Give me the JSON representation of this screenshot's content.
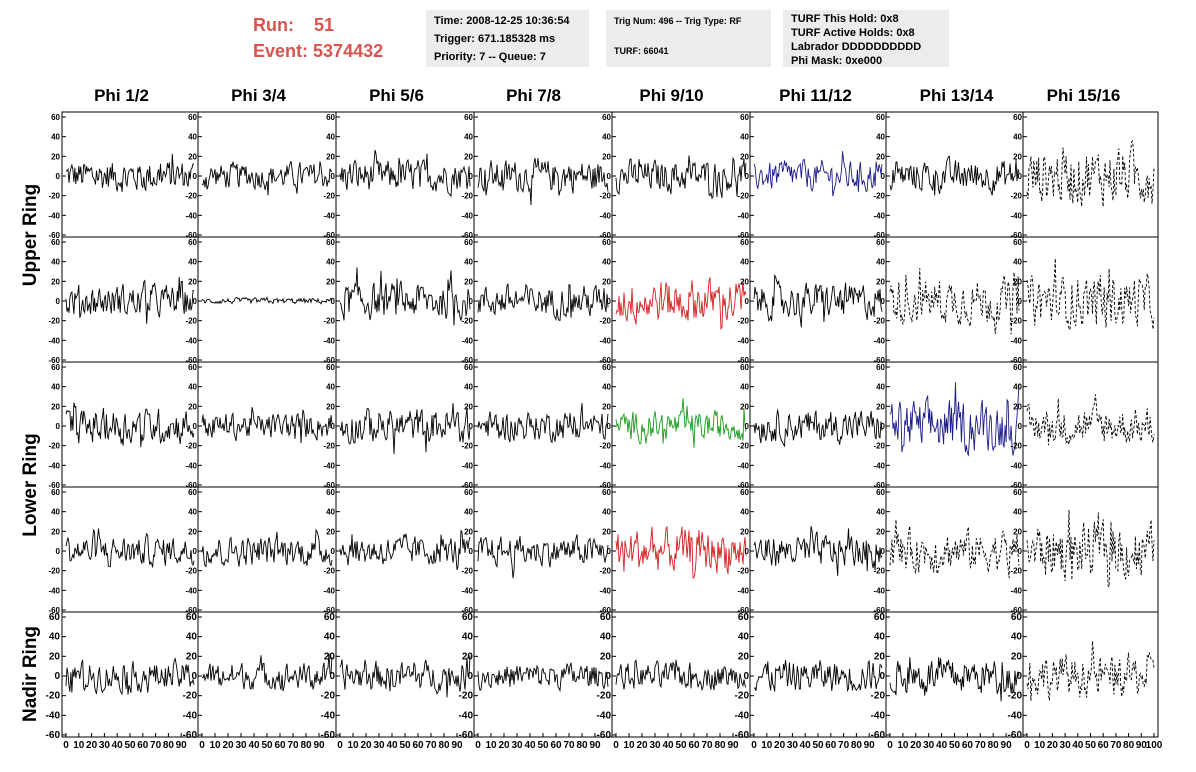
{
  "header": {
    "run_label": "Run:",
    "run_value": "51",
    "event_label": "Event:",
    "event_value": "5374432",
    "info1": [
      "Time: 2008-12-25 10:36:54",
      "Trigger: 671.185328 ms",
      "Priority: 7 -- Queue: 7"
    ],
    "info2": [
      "Trig Num: 496 -- Trig Type: RF",
      "TURF: 66041"
    ],
    "info3": [
      "TURF This Hold: 0x8",
      "TURF Active Holds: 0x8",
      "Labrador DDDDDDDDDD",
      "Phi Mask: 0xe000"
    ]
  },
  "column_headers": [
    "Phi 1/2",
    "Phi 3/4",
    "Phi 5/6",
    "Phi 7/8",
    "Phi 9/10",
    "Phi 11/12",
    "Phi 13/14",
    "Phi 15/16"
  ],
  "row_group_headers": [
    "Upper Ring",
    "Lower Ring",
    "Nadir Ring"
  ],
  "colors": {
    "header_red": "#d9534f",
    "trace_default": "#000000",
    "trace_blue": "#1c1c8c",
    "trace_red": "#d42020",
    "trace_green": "#1a9a1a",
    "box_bg": "#ececec"
  },
  "chart_data": {
    "type": "line",
    "layout": "grid",
    "columns": 8,
    "rows": 5,
    "xlim": [
      0,
      100
    ],
    "ylim": [
      -60,
      60
    ],
    "y_ticks": [
      -60,
      -40,
      -20,
      0,
      20,
      40,
      60
    ],
    "x_tick_labels": [
      "0",
      "10",
      "20",
      "30",
      "40",
      "50",
      "60",
      "70",
      "80",
      "90",
      "100"
    ],
    "panels": [
      [
        {
          "style": "solid",
          "color": "black",
          "amp": 22
        },
        {
          "style": "solid",
          "color": "black",
          "amp": 18
        },
        {
          "style": "solid",
          "color": "black",
          "amp": 22
        },
        {
          "style": "solid",
          "color": "black",
          "amp": 22
        },
        {
          "style": "solid",
          "color": "black",
          "amp": 22
        },
        {
          "style": "solid",
          "color": "blue",
          "amp": 20
        },
        {
          "style": "solid",
          "color": "black",
          "amp": 22
        },
        {
          "style": "dashed",
          "color": "black",
          "amp": 38
        }
      ],
      [
        {
          "style": "solid",
          "color": "black",
          "amp": 22
        },
        {
          "style": "solid",
          "color": "black",
          "amp": 4
        },
        {
          "style": "solid",
          "color": "black",
          "amp": 25
        },
        {
          "style": "solid",
          "color": "black",
          "amp": 22
        },
        {
          "style": "solid",
          "color": "red",
          "amp": 30
        },
        {
          "style": "solid",
          "color": "black",
          "amp": 24
        },
        {
          "style": "dashed",
          "color": "black",
          "amp": 30
        },
        {
          "style": "dashed",
          "color": "black",
          "amp": 35
        }
      ],
      [
        {
          "style": "solid",
          "color": "black",
          "amp": 24
        },
        {
          "style": "solid",
          "color": "black",
          "amp": 18
        },
        {
          "style": "solid",
          "color": "black",
          "amp": 24
        },
        {
          "style": "solid",
          "color": "black",
          "amp": 20
        },
        {
          "style": "solid",
          "color": "green",
          "amp": 20
        },
        {
          "style": "solid",
          "color": "black",
          "amp": 22
        },
        {
          "style": "solid",
          "color": "blue",
          "amp": 35
        },
        {
          "style": "dashed",
          "color": "black",
          "amp": 25
        }
      ],
      [
        {
          "style": "solid",
          "color": "black",
          "amp": 20
        },
        {
          "style": "solid",
          "color": "black",
          "amp": 20
        },
        {
          "style": "solid",
          "color": "black",
          "amp": 20
        },
        {
          "style": "solid",
          "color": "black",
          "amp": 20
        },
        {
          "style": "solid",
          "color": "red",
          "amp": 30
        },
        {
          "style": "solid",
          "color": "black",
          "amp": 22
        },
        {
          "style": "dashed",
          "color": "black",
          "amp": 28
        },
        {
          "style": "dashed",
          "color": "black",
          "amp": 38
        }
      ],
      [
        {
          "style": "solid",
          "color": "black",
          "amp": 20
        },
        {
          "style": "solid",
          "color": "black",
          "amp": 18
        },
        {
          "style": "solid",
          "color": "black",
          "amp": 20
        },
        {
          "style": "solid",
          "color": "black",
          "amp": 18
        },
        {
          "style": "solid",
          "color": "black",
          "amp": 18
        },
        {
          "style": "solid",
          "color": "black",
          "amp": 22
        },
        {
          "style": "solid",
          "color": "black",
          "amp": 24
        },
        {
          "style": "dashed",
          "color": "black",
          "amp": 28
        }
      ]
    ]
  }
}
